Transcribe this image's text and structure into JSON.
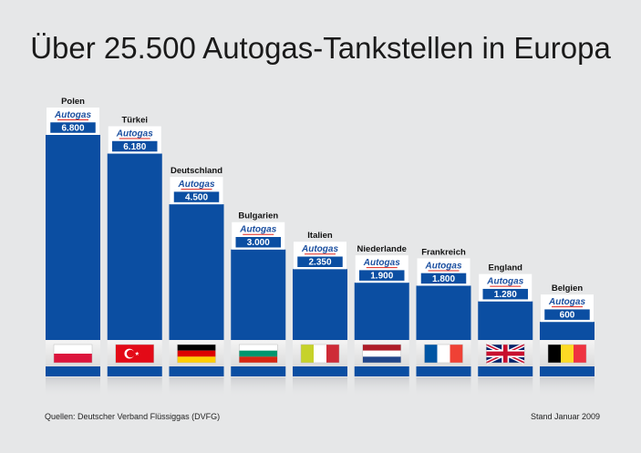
{
  "title": "Über 25.500 Autogas-Tankstellen in Europa",
  "source": "Quellen: Deutscher Verband Flüssiggas (DVFG)",
  "stand": "Stand Januar 2009",
  "badge_text": "Autogas",
  "colors": {
    "bar": "#0b4ea2",
    "badge_text": "#1b4fa0",
    "value_box": "#0b4ea2",
    "background": "#e6e7e8"
  },
  "chart_data": {
    "type": "bar",
    "title": "Über 25.500 Autogas-Tankstellen in Europa",
    "categories": [
      "Polen",
      "Türkei",
      "Deutschland",
      "Bulgarien",
      "Italien",
      "Niederlande",
      "Frankreich",
      "England",
      "Belgien"
    ],
    "values": [
      6800,
      6180,
      4500,
      3000,
      2350,
      1900,
      1800,
      1280,
      600
    ],
    "value_labels": [
      "6.800",
      "6.180",
      "4.500",
      "3.000",
      "2.350",
      "1.900",
      "1.800",
      "1.280",
      "600"
    ],
    "flags": [
      "poland-flag",
      "turkey-flag",
      "germany-flag",
      "bulgaria-flag",
      "italy-flag",
      "netherlands-flag",
      "france-flag",
      "uk-flag",
      "belgium-flag"
    ],
    "grid": false,
    "legend": "none"
  }
}
